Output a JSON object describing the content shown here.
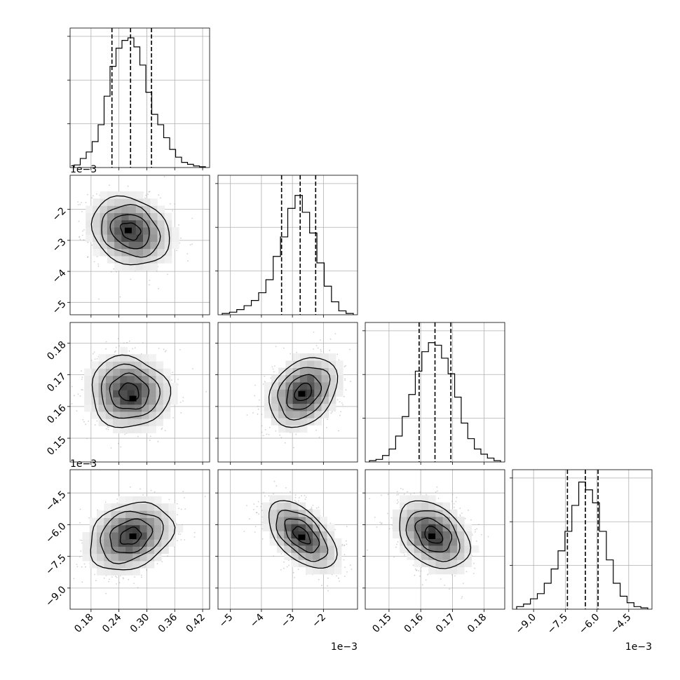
{
  "chart_data": {
    "type": "corner",
    "grid": true,
    "n_parameters": 4,
    "parameters": [
      {
        "index": 0,
        "range": [
          0.135,
          0.435
        ],
        "scale_offset_label": "",
        "ticks": [
          0.18,
          0.24,
          0.3,
          0.36,
          0.42
        ],
        "tick_labels": [
          "0.18",
          "0.24",
          "0.30",
          "0.36",
          "0.42"
        ],
        "quantiles": [
          0.225,
          0.265,
          0.31
        ],
        "histogram": [
          0.02,
          0.07,
          0.12,
          0.2,
          0.33,
          0.55,
          0.78,
          0.92,
          0.98,
          1.0,
          0.93,
          0.79,
          0.58,
          0.41,
          0.33,
          0.23,
          0.14,
          0.08,
          0.04,
          0.025,
          0.012,
          0.006
        ]
      },
      {
        "index": 1,
        "range": [
          -5.4,
          -0.9
        ],
        "scale_offset_label": "1e−3",
        "ticks": [
          -5,
          -4,
          -3,
          -2
        ],
        "tick_labels": [
          "−5",
          "−4",
          "−3",
          "−2"
        ],
        "quantiles": [
          -3.35,
          -2.75,
          -2.25
        ],
        "histogram": [
          0.01,
          0.02,
          0.04,
          0.07,
          0.11,
          0.17,
          0.27,
          0.45,
          0.6,
          0.82,
          0.92,
          0.79,
          0.63,
          0.4,
          0.22,
          0.1,
          0.03,
          0.01
        ]
      },
      {
        "index": 2,
        "range": [
          0.1425,
          0.1865
        ],
        "scale_offset_label": "",
        "ticks": [
          0.15,
          0.16,
          0.17,
          0.18
        ],
        "tick_labels": [
          "0.15",
          "0.16",
          "0.17",
          "0.18"
        ],
        "quantiles": [
          0.1595,
          0.1645,
          0.1695
        ],
        "histogram": [
          0.01,
          0.02,
          0.05,
          0.1,
          0.2,
          0.35,
          0.52,
          0.7,
          0.85,
          0.92,
          0.9,
          0.8,
          0.68,
          0.5,
          0.3,
          0.18,
          0.1,
          0.06,
          0.03,
          0.01
        ]
      },
      {
        "index": 3,
        "range": [
          -10.0,
          -3.4
        ],
        "scale_offset_label": "1e−3",
        "ticks": [
          -9.0,
          -7.5,
          -6.0,
          -4.5
        ],
        "tick_labels": [
          "−9.0",
          "−7.5",
          "−6.0",
          "−4.5"
        ],
        "quantiles": [
          -7.4,
          -6.55,
          -5.95
        ],
        "histogram": [
          0.02,
          0.04,
          0.08,
          0.12,
          0.2,
          0.31,
          0.45,
          0.6,
          0.8,
          0.98,
          0.92,
          0.82,
          0.6,
          0.38,
          0.2,
          0.1,
          0.05,
          0.02,
          0.01
        ]
      }
    ],
    "pairs": [
      {
        "x_param": 0,
        "y_param": 1,
        "mean": [
          0.265,
          -2.7
        ],
        "sd": [
          0.042,
          0.55
        ],
        "correlation": -0.2,
        "contour_levels_sigma": [
          0.5,
          1.0,
          1.5,
          2.0
        ],
        "peak": [
          0.26,
          -2.68
        ]
      },
      {
        "x_param": 0,
        "y_param": 2,
        "mean": [
          0.262,
          0.1645
        ],
        "sd": [
          0.042,
          0.0056
        ],
        "correlation": -0.05,
        "contour_levels_sigma": [
          0.5,
          1.0,
          1.5,
          2.0
        ],
        "peak": [
          0.27,
          0.1625
        ]
      },
      {
        "x_param": 1,
        "y_param": 2,
        "mean": [
          -2.65,
          0.1645
        ],
        "sd": [
          0.55,
          0.0055
        ],
        "correlation": 0.3,
        "contour_levels_sigma": [
          0.5,
          1.0,
          1.5,
          2.0
        ],
        "peak": [
          -2.7,
          0.164
        ]
      },
      {
        "x_param": 0,
        "y_param": 3,
        "mean": [
          0.265,
          -6.55
        ],
        "sd": [
          0.045,
          0.8
        ],
        "correlation": 0.25,
        "contour_levels_sigma": [
          0.5,
          1.0,
          1.5,
          2.0
        ],
        "peak": [
          0.27,
          -6.55
        ]
      },
      {
        "x_param": 1,
        "y_param": 3,
        "mean": [
          -2.7,
          -6.5
        ],
        "sd": [
          0.55,
          0.8
        ],
        "correlation": -0.55,
        "contour_levels_sigma": [
          0.5,
          1.0,
          1.5,
          2.0
        ],
        "peak": [
          -2.7,
          -6.6
        ]
      },
      {
        "x_param": 2,
        "y_param": 3,
        "mean": [
          0.164,
          -6.5
        ],
        "sd": [
          0.0056,
          0.8
        ],
        "correlation": -0.35,
        "contour_levels_sigma": [
          0.5,
          1.0,
          1.5,
          2.0
        ],
        "peak": [
          0.1635,
          -6.55
        ]
      }
    ]
  }
}
